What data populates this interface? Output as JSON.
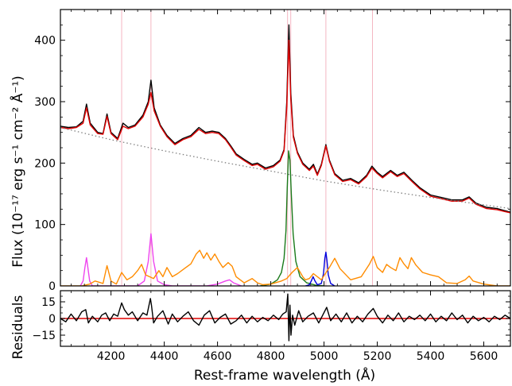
{
  "chart_data": [
    {
      "type": "line",
      "panel": "spectrum",
      "ylabel": "Flux (10⁻¹⁷ erg s⁻¹ cm⁻² Å⁻¹)",
      "xlim": [
        4010,
        5700
      ],
      "ylim": [
        0,
        450
      ],
      "y_ticks": [
        0,
        100,
        200,
        300,
        400
      ],
      "x_ticks": [
        4200,
        4400,
        4600,
        4800,
        5000,
        5200,
        5400,
        5600
      ],
      "ticks_direction": "in",
      "grid": false,
      "legend": "none",
      "vertical_markers": {
        "color": "#f4b6c2",
        "x": [
          4240,
          4350,
          4863,
          4875,
          5007,
          5182
        ]
      },
      "series": [
        {
          "role": "observed",
          "color": "#000000",
          "style": "solid",
          "x": [
            4010,
            4040,
            4070,
            4095,
            4108,
            4122,
            4150,
            4170,
            4185,
            4200,
            4225,
            4245,
            4265,
            4290,
            4320,
            4340,
            4350,
            4362,
            4385,
            4410,
            4440,
            4470,
            4500,
            4530,
            4555,
            4580,
            4605,
            4630,
            4650,
            4670,
            4700,
            4730,
            4750,
            4780,
            4810,
            4835,
            4850,
            4860,
            4868,
            4875,
            4885,
            4900,
            4920,
            4945,
            4960,
            4975,
            4990,
            5007,
            5020,
            5040,
            5070,
            5100,
            5130,
            5160,
            5180,
            5200,
            5220,
            5250,
            5275,
            5300,
            5330,
            5360,
            5400,
            5440,
            5480,
            5520,
            5545,
            5570,
            5610,
            5650,
            5700
          ],
          "y": [
            260,
            258,
            259,
            268,
            296,
            265,
            250,
            248,
            280,
            250,
            240,
            265,
            258,
            262,
            278,
            300,
            335,
            290,
            262,
            245,
            232,
            240,
            245,
            258,
            250,
            252,
            250,
            240,
            228,
            215,
            206,
            198,
            200,
            192,
            196,
            205,
            222,
            300,
            425,
            315,
            245,
            218,
            200,
            190,
            198,
            182,
            198,
            230,
            205,
            183,
            172,
            175,
            168,
            180,
            195,
            185,
            178,
            188,
            180,
            185,
            172,
            160,
            148,
            144,
            140,
            140,
            145,
            135,
            128,
            126,
            120
          ]
        },
        {
          "role": "model",
          "color": "#e00000",
          "style": "solid",
          "x": [
            4010,
            4040,
            4070,
            4095,
            4108,
            4122,
            4150,
            4170,
            4185,
            4200,
            4225,
            4245,
            4265,
            4290,
            4320,
            4340,
            4350,
            4362,
            4385,
            4410,
            4440,
            4470,
            4500,
            4530,
            4555,
            4580,
            4605,
            4630,
            4650,
            4670,
            4700,
            4730,
            4750,
            4780,
            4810,
            4835,
            4850,
            4860,
            4868,
            4875,
            4885,
            4900,
            4920,
            4945,
            4960,
            4975,
            4990,
            5007,
            5020,
            5040,
            5070,
            5100,
            5130,
            5160,
            5180,
            5200,
            5220,
            5250,
            5275,
            5300,
            5330,
            5360,
            5400,
            5440,
            5480,
            5520,
            5545,
            5570,
            5610,
            5650,
            5700
          ],
          "y": [
            258,
            256,
            258,
            265,
            290,
            262,
            248,
            247,
            276,
            248,
            238,
            260,
            256,
            260,
            275,
            296,
            315,
            285,
            260,
            243,
            230,
            238,
            243,
            255,
            248,
            250,
            248,
            238,
            226,
            213,
            204,
            196,
            198,
            190,
            194,
            203,
            220,
            292,
            400,
            305,
            242,
            216,
            198,
            188,
            195,
            180,
            196,
            228,
            203,
            181,
            170,
            173,
            166,
            178,
            192,
            183,
            176,
            186,
            178,
            183,
            170,
            158,
            146,
            142,
            138,
            138,
            143,
            133,
            126,
            124,
            119
          ]
        },
        {
          "role": "continuum",
          "color": "#808080",
          "style": "dotted",
          "x": [
            4010,
            4200,
            4400,
            4600,
            4800,
            5000,
            5200,
            5400,
            5600,
            5700
          ],
          "y": [
            258,
            238,
            220,
            203,
            187,
            171,
            157,
            144,
            132,
            126
          ]
        },
        {
          "role": "broad-hbeta",
          "color": "#1a7a1a",
          "style": "solid",
          "x": [
            4760,
            4800,
            4825,
            4840,
            4850,
            4857,
            4862,
            4867,
            4872,
            4877,
            4884,
            4894,
            4910,
            4935,
            4970,
            5000
          ],
          "y": [
            0,
            3,
            10,
            22,
            45,
            90,
            160,
            220,
            205,
            150,
            85,
            40,
            15,
            5,
            1,
            0
          ]
        },
        {
          "role": "oiii",
          "color": "#0000dd",
          "style": "solid",
          "x": [
            4930,
            4945,
            4952,
            4959,
            4966,
            4975,
            4990,
            4998,
            5003,
            5007,
            5011,
            5016,
            5025,
            5040
          ],
          "y": [
            0,
            2,
            8,
            15,
            8,
            2,
            4,
            20,
            45,
            55,
            42,
            18,
            4,
            0
          ]
        },
        {
          "role": "narrow-lines",
          "color": "#ee44ee",
          "style": "solid",
          "x": [
            4085,
            4095,
            4102,
            4108,
            4113,
            4120,
            4130,
            4300,
            4325,
            4340,
            4350,
            4360,
            4375,
            4400,
            4430,
            4560,
            4600,
            4630,
            4645,
            4660,
            4690
          ],
          "y": [
            0,
            8,
            30,
            46,
            30,
            8,
            0,
            0,
            8,
            40,
            85,
            40,
            8,
            2,
            0,
            0,
            3,
            8,
            10,
            5,
            0
          ]
        },
        {
          "role": "feii",
          "color": "#ff8c00",
          "style": "solid",
          "x": [
            4010,
            4090,
            4120,
            4140,
            4170,
            4185,
            4200,
            4220,
            4240,
            4260,
            4280,
            4300,
            4315,
            4330,
            4360,
            4380,
            4395,
            4410,
            4430,
            4450,
            4475,
            4500,
            4520,
            4533,
            4548,
            4560,
            4575,
            4590,
            4605,
            4620,
            4640,
            4655,
            4670,
            4700,
            4730,
            4750,
            4770,
            4800,
            4840,
            4860,
            4880,
            4900,
            4920,
            4930,
            4945,
            4960,
            4990,
            5020,
            5040,
            5060,
            5100,
            5140,
            5170,
            5185,
            5200,
            5220,
            5235,
            5250,
            5270,
            5285,
            5300,
            5315,
            5328,
            5345,
            5370,
            5400,
            5430,
            5460,
            5500,
            5530,
            5545,
            5560,
            5600,
            5650,
            5700
          ],
          "y": [
            0,
            0,
            3,
            8,
            4,
            33,
            8,
            3,
            22,
            10,
            15,
            25,
            35,
            18,
            12,
            25,
            15,
            30,
            15,
            20,
            28,
            36,
            52,
            58,
            45,
            54,
            42,
            52,
            40,
            30,
            38,
            32,
            15,
            5,
            12,
            5,
            2,
            3,
            8,
            12,
            22,
            30,
            15,
            10,
            12,
            20,
            10,
            30,
            45,
            28,
            10,
            15,
            35,
            48,
            30,
            22,
            35,
            30,
            25,
            46,
            36,
            28,
            46,
            34,
            22,
            18,
            15,
            5,
            4,
            10,
            16,
            8,
            3,
            0,
            0
          ]
        }
      ]
    },
    {
      "type": "line",
      "panel": "residuals",
      "ylabel": "Residuals",
      "xlabel": "Rest-frame wavelength (Å)",
      "xlim": [
        4010,
        5700
      ],
      "ylim": [
        -25,
        25
      ],
      "y_ticks": [
        -15,
        0,
        15
      ],
      "y_tick_labels": [
        "−15",
        "0",
        "15"
      ],
      "x_ticks": [
        4200,
        4400,
        4600,
        4800,
        5000,
        5200,
        5400,
        5600
      ],
      "x_tick_labels": [
        "4200",
        "4400",
        "4600",
        "4800",
        "5000",
        "5200",
        "5400",
        "5600"
      ],
      "grid": false,
      "legend": "none",
      "series": [
        {
          "role": "zero-line",
          "color": "#e00000",
          "style": "solid",
          "x": [
            4010,
            5700
          ],
          "y": [
            0,
            0
          ]
        },
        {
          "role": "residuals",
          "color": "#000000",
          "style": "solid",
          "x": [
            4010,
            4030,
            4050,
            4070,
            4090,
            4105,
            4115,
            4130,
            4150,
            4165,
            4180,
            4195,
            4210,
            4225,
            4240,
            4250,
            4265,
            4280,
            4300,
            4320,
            4335,
            4348,
            4352,
            4360,
            4375,
            4395,
            4415,
            4430,
            4450,
            4470,
            4490,
            4510,
            4530,
            4550,
            4570,
            4590,
            4610,
            4630,
            4650,
            4670,
            4690,
            4710,
            4730,
            4750,
            4770,
            4790,
            4810,
            4830,
            4845,
            4858,
            4864,
            4868,
            4872,
            4876,
            4882,
            4890,
            4905,
            4920,
            4940,
            4960,
            4980,
            4995,
            5010,
            5025,
            5045,
            5065,
            5085,
            5105,
            5125,
            5145,
            5165,
            5185,
            5200,
            5220,
            5240,
            5260,
            5280,
            5300,
            5320,
            5340,
            5360,
            5380,
            5400,
            5420,
            5440,
            5460,
            5480,
            5500,
            5520,
            5540,
            5560,
            5580,
            5600,
            5620,
            5640,
            5660,
            5680,
            5700
          ],
          "y": [
            0,
            -3,
            4,
            -2,
            6,
            8,
            -4,
            2,
            -3,
            3,
            5,
            -2,
            4,
            2,
            14,
            8,
            3,
            6,
            -2,
            5,
            3,
            18,
            12,
            -4,
            2,
            7,
            -5,
            4,
            -3,
            2,
            6,
            -2,
            -6,
            3,
            7,
            -4,
            1,
            4,
            -5,
            -2,
            3,
            -4,
            2,
            -3,
            1,
            -2,
            3,
            -1,
            4,
            6,
            22,
            -20,
            12,
            -15,
            3,
            -6,
            7,
            -3,
            2,
            5,
            -4,
            3,
            10,
            -2,
            4,
            -3,
            5,
            -4,
            2,
            -3,
            4,
            9,
            2,
            -4,
            3,
            -2,
            5,
            -3,
            2,
            -1,
            3,
            -2,
            4,
            -3,
            2,
            -2,
            5,
            -1,
            3,
            -4,
            2,
            -2,
            1,
            -3,
            2,
            -1,
            3,
            0
          ]
        }
      ]
    }
  ]
}
